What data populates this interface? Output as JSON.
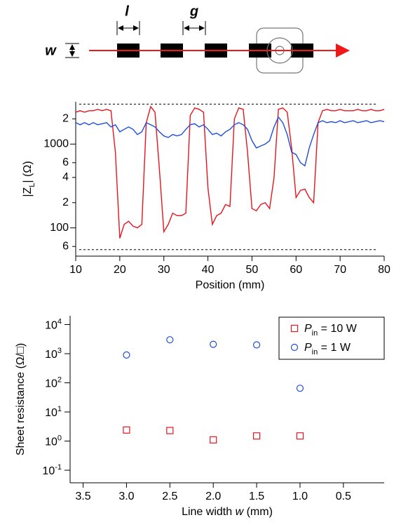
{
  "schematic": {
    "labels": {
      "l": "l",
      "g": "g",
      "w": "w"
    }
  },
  "chart_data": [
    {
      "type": "line",
      "xlabel": "Position (mm)",
      "ylabel": {
        "main": "|Z",
        "sub": "L",
        "rest": "| (Ω)"
      },
      "xlim": [
        10,
        80
      ],
      "xticks": [
        10,
        20,
        30,
        40,
        50,
        60,
        70,
        80
      ],
      "ylog": true,
      "ylim": [
        46,
        3200
      ],
      "yticks": [
        {
          "value": 2000,
          "label": "2"
        },
        1000,
        {
          "value": 600,
          "label": "6"
        },
        {
          "value": 400,
          "label": "4"
        },
        {
          "value": 200,
          "label": "2"
        },
        100,
        {
          "value": 60,
          "label": "6"
        }
      ],
      "reference_lines": [
        3000,
        55
      ],
      "x": [
        10,
        11,
        12,
        13,
        14,
        15,
        16,
        17,
        18,
        19,
        20,
        21,
        22,
        23,
        24,
        25,
        26,
        27,
        28,
        29,
        30,
        31,
        32,
        33,
        34,
        35,
        36,
        37,
        38,
        39,
        40,
        41,
        42,
        43,
        44,
        45,
        46,
        47,
        48,
        49,
        50,
        51,
        52,
        53,
        54,
        55,
        56,
        57,
        58,
        59,
        60,
        61,
        62,
        63,
        64,
        65,
        66,
        67,
        68,
        69,
        70,
        71,
        72,
        73,
        74,
        75,
        76,
        77,
        78,
        79,
        80
      ],
      "series": [
        {
          "color": "#e8141e",
          "values": [
            2400,
            2500,
            2400,
            2500,
            2500,
            2600,
            2500,
            2600,
            2500,
            800,
            75,
            110,
            120,
            105,
            100,
            110,
            1800,
            2800,
            2400,
            500,
            90,
            110,
            150,
            140,
            140,
            150,
            2200,
            2700,
            2600,
            2400,
            300,
            110,
            140,
            150,
            190,
            180,
            2000,
            2700,
            2600,
            800,
            170,
            160,
            190,
            200,
            170,
            400,
            2600,
            2700,
            2400,
            900,
            230,
            280,
            290,
            230,
            200,
            1800,
            2500,
            2600,
            2500,
            2500,
            2600,
            2500,
            2500,
            2500,
            2600,
            2500,
            2500,
            2600,
            2500,
            2500,
            2600
          ]
        },
        {
          "color": "#1f4ed8",
          "values": [
            1800,
            1700,
            1800,
            1700,
            1800,
            1700,
            1750,
            1800,
            1600,
            1700,
            1400,
            1500,
            1600,
            1500,
            1300,
            1400,
            1800,
            1700,
            1600,
            1400,
            1250,
            1200,
            1300,
            1250,
            1300,
            1500,
            1700,
            1750,
            1600,
            1700,
            1500,
            1300,
            1350,
            1250,
            1400,
            1500,
            1700,
            1800,
            1700,
            1500,
            1100,
            900,
            950,
            1000,
            1100,
            1600,
            2100,
            1800,
            1300,
            800,
            750,
            600,
            550,
            900,
            1300,
            1800,
            1900,
            1800,
            1850,
            1800,
            1900,
            1800,
            1850,
            1900,
            1800,
            1850,
            1900,
            1800,
            1850,
            1900,
            1850
          ]
        }
      ]
    },
    {
      "type": "scatter",
      "xlabel": {
        "start": "Line width ",
        "var": "w",
        "end": " (mm)"
      },
      "ylabel": "Sheet resistance (Ω/□)",
      "xlim": [
        3.65,
        0.03
      ],
      "xticks": [
        3.5,
        {
          "value": 3,
          "label": "3.0"
        },
        2.5,
        {
          "value": 2,
          "label": "2.0"
        },
        1.5,
        {
          "value": 1,
          "label": "1.0"
        },
        0.5
      ],
      "ylog": true,
      "ylim": [
        0.037,
        20000
      ],
      "yticks": [
        {
          "value": 10000,
          "label": "10",
          "exponent": "4"
        },
        {
          "value": 1000,
          "label": "10",
          "exponent": "3"
        },
        {
          "value": 100,
          "label": "10",
          "exponent": "2"
        },
        {
          "value": 10,
          "label": "10",
          "exponent": "1"
        },
        {
          "value": 1,
          "label": "10",
          "exponent": "0"
        },
        {
          "value": 0.1,
          "label": "10",
          "exponent": "-1"
        }
      ],
      "legend": "top-right",
      "series": [
        {
          "name": {
            "symbol": "P",
            "sub": "in",
            "rest": " = 10 W"
          },
          "color": "#e8141e",
          "marker": "square",
          "x": [
            3,
            2.5,
            2,
            1.5,
            1
          ],
          "values": [
            2.4,
            2.3,
            1.1,
            1.5,
            1.5
          ]
        },
        {
          "name": {
            "symbol": "P",
            "sub": "in",
            "rest": " = 1 W"
          },
          "color": "#1f4ed8",
          "marker": "circle",
          "x": [
            3,
            2.5,
            2,
            1.5,
            1
          ],
          "values": [
            900,
            3000,
            2100,
            2000,
            65
          ]
        }
      ]
    }
  ]
}
